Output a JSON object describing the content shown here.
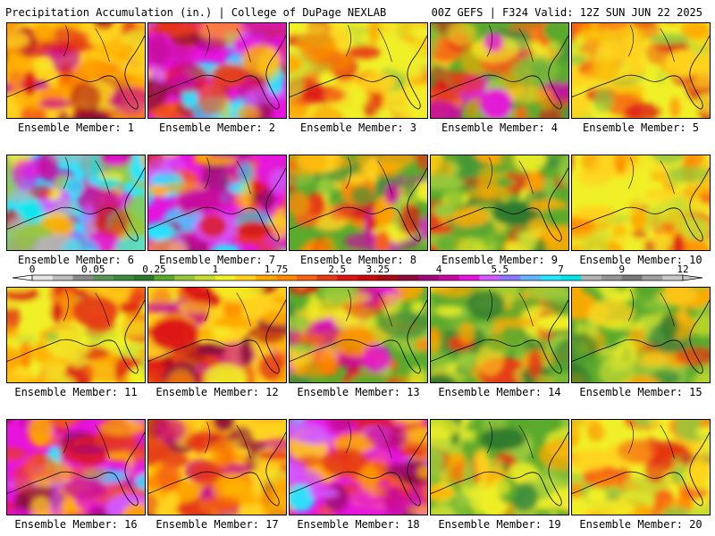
{
  "header": {
    "left": "Precipitation Accumulation (in.) | College of DuPage NEXLAB",
    "right": "00Z GEFS | F324 Valid: 12Z SUN JUN 22 2025"
  },
  "colorbar": {
    "labels": [
      "0",
      "0.05",
      "0.25",
      "1",
      "1.75",
      "2.5",
      "3.25",
      "4",
      "5.5",
      "7",
      "9",
      "12"
    ],
    "colors": [
      "#e6e6e6",
      "#bebebe",
      "#8c8c8c",
      "#5a965a",
      "#3c8c3c",
      "#2d782d",
      "#5aaa2d",
      "#96c83c",
      "#c8dc32",
      "#f0f028",
      "#ffd21e",
      "#ffaa00",
      "#ff8c00",
      "#f56414",
      "#e63c14",
      "#dc1414",
      "#c80a0a",
      "#aa0a14",
      "#8c0a3c",
      "#a00a78",
      "#c80aa0",
      "#e614dc",
      "#d25aff",
      "#8c78ff",
      "#64b4ff",
      "#28e6ff",
      "#00e6e6",
      "#b4b4b4",
      "#969696",
      "#787878",
      "#a0a0a0",
      "#c8c8c8"
    ]
  },
  "panels": [
    {
      "label": "Ensemble Member: 1",
      "tone": "red"
    },
    {
      "label": "Ensemble Member: 2",
      "tone": "magenta"
    },
    {
      "label": "Ensemble Member: 3",
      "tone": "yellow"
    },
    {
      "label": "Ensemble Member: 4",
      "tone": "mixed"
    },
    {
      "label": "Ensemble Member: 5",
      "tone": "yellow"
    },
    {
      "label": "Ensemble Member: 6",
      "tone": "cyan"
    },
    {
      "label": "Ensemble Member: 7",
      "tone": "magenta"
    },
    {
      "label": "Ensemble Member: 8",
      "tone": "mixed"
    },
    {
      "label": "Ensemble Member: 9",
      "tone": "green"
    },
    {
      "label": "Ensemble Member: 10",
      "tone": "yellow"
    },
    {
      "label": "Ensemble Member: 11",
      "tone": "yellow"
    },
    {
      "label": "Ensemble Member: 12",
      "tone": "red"
    },
    {
      "label": "Ensemble Member: 13",
      "tone": "mixed"
    },
    {
      "label": "Ensemble Member: 14",
      "tone": "green"
    },
    {
      "label": "Ensemble Member: 15",
      "tone": "green"
    },
    {
      "label": "Ensemble Member: 16",
      "tone": "magenta"
    },
    {
      "label": "Ensemble Member: 17",
      "tone": "red"
    },
    {
      "label": "Ensemble Member: 18",
      "tone": "magenta"
    },
    {
      "label": "Ensemble Member: 19",
      "tone": "green"
    },
    {
      "label": "Ensemble Member: 20",
      "tone": "yellow"
    }
  ]
}
